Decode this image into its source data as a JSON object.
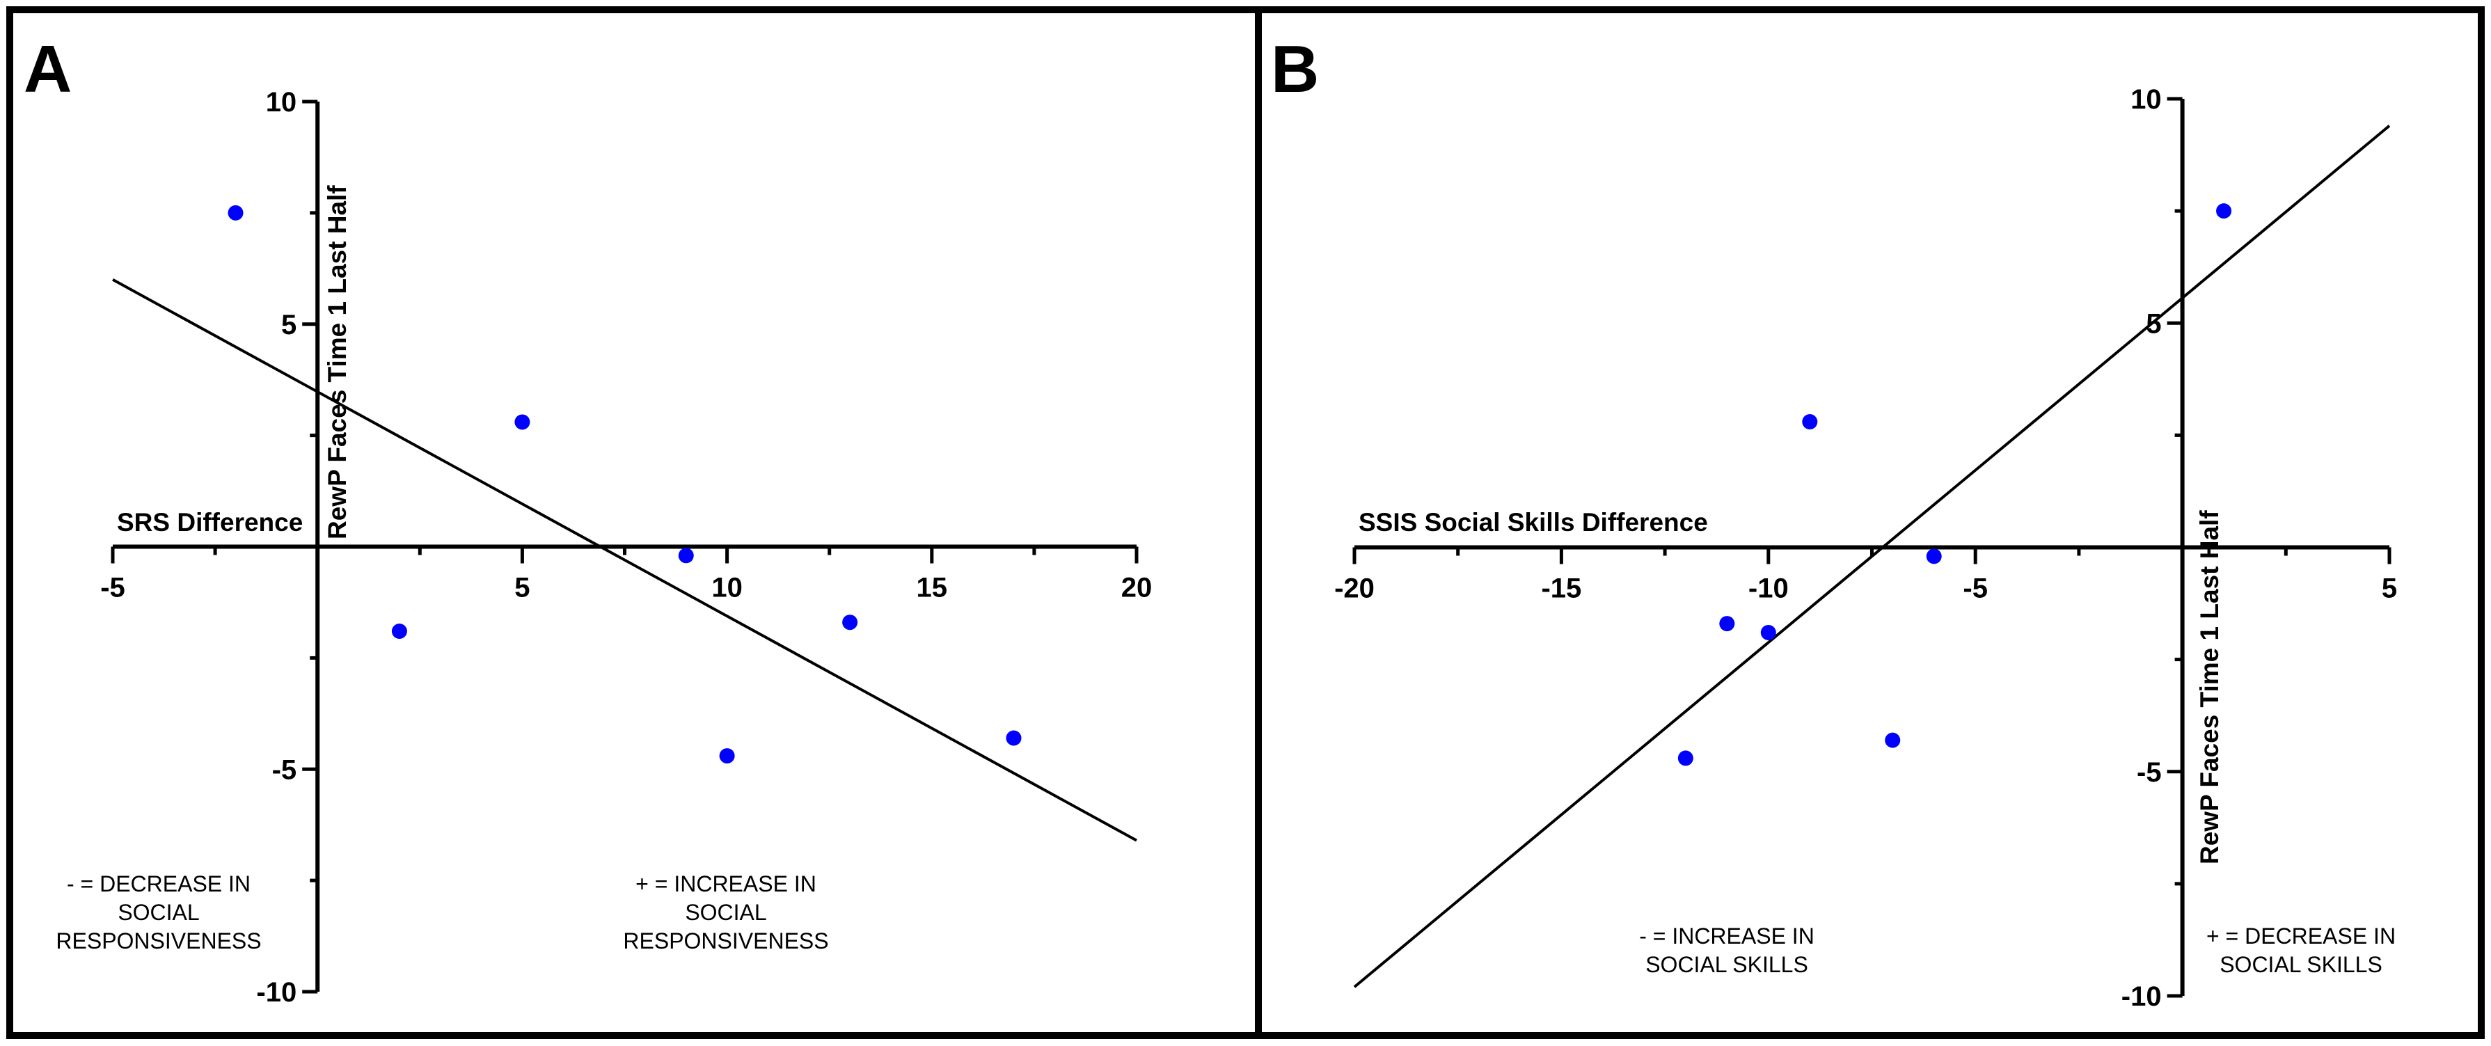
{
  "chart_data": [
    {
      "panel": "A",
      "type": "scatter",
      "xlabel": "SRS Difference",
      "ylabel": "RewP Faces Time 1 Last Half",
      "xlim": [
        -5,
        20
      ],
      "ylim": [
        -10,
        10
      ],
      "x_ticks": [
        -5,
        0,
        5,
        10,
        15,
        20
      ],
      "y_ticks": [
        -10,
        -5,
        0,
        5,
        10
      ],
      "x_tick_labels": [
        "-5",
        "",
        "5",
        "10",
        "15",
        "20"
      ],
      "y_tick_labels": [
        "-10",
        "-5",
        "",
        "5",
        "10"
      ],
      "points": [
        {
          "x": -2,
          "y": 7.5
        },
        {
          "x": 2,
          "y": -1.9
        },
        {
          "x": 5,
          "y": 2.8
        },
        {
          "x": 9,
          "y": -0.2
        },
        {
          "x": 10,
          "y": -4.7
        },
        {
          "x": 13,
          "y": -1.7
        },
        {
          "x": 17,
          "y": -4.3
        }
      ],
      "regression": {
        "x": [
          -5,
          20
        ],
        "y": [
          6.0,
          -6.6
        ]
      },
      "marker_color": "#0000ff",
      "notes": [
        [
          "- = DECREASE IN",
          "SOCIAL",
          "RESPONSIVENESS"
        ],
        [
          "+ = INCREASE IN",
          "SOCIAL",
          "RESPONSIVENESS"
        ]
      ]
    },
    {
      "panel": "B",
      "type": "scatter",
      "xlabel": "SSIS Social Skills Difference",
      "ylabel": "RewP Faces Time 1 Last Half",
      "xlim": [
        -20,
        5
      ],
      "ylim": [
        -10,
        10
      ],
      "x_ticks": [
        -20,
        -15,
        -10,
        -5,
        0,
        5
      ],
      "y_ticks": [
        -10,
        -5,
        0,
        5,
        10
      ],
      "x_tick_labels": [
        "-20",
        "-15",
        "-10",
        "-5",
        "",
        "5"
      ],
      "y_tick_labels": [
        "-10",
        "-5",
        "",
        "5",
        "10"
      ],
      "points": [
        {
          "x": 1,
          "y": 7.5
        },
        {
          "x": -9,
          "y": 2.8
        },
        {
          "x": -6,
          "y": -0.2
        },
        {
          "x": -11,
          "y": -1.7
        },
        {
          "x": -10,
          "y": -1.9
        },
        {
          "x": -12,
          "y": -4.7
        },
        {
          "x": -7,
          "y": -4.3
        }
      ],
      "regression": {
        "x": [
          -20,
          5
        ],
        "y": [
          -9.8,
          9.4
        ]
      },
      "marker_color": "#0000ff",
      "notes": [
        [
          "- = INCREASE IN",
          "SOCIAL SKILLS"
        ],
        [
          "+ = DECREASE IN",
          "SOCIAL SKILLS"
        ]
      ]
    }
  ]
}
